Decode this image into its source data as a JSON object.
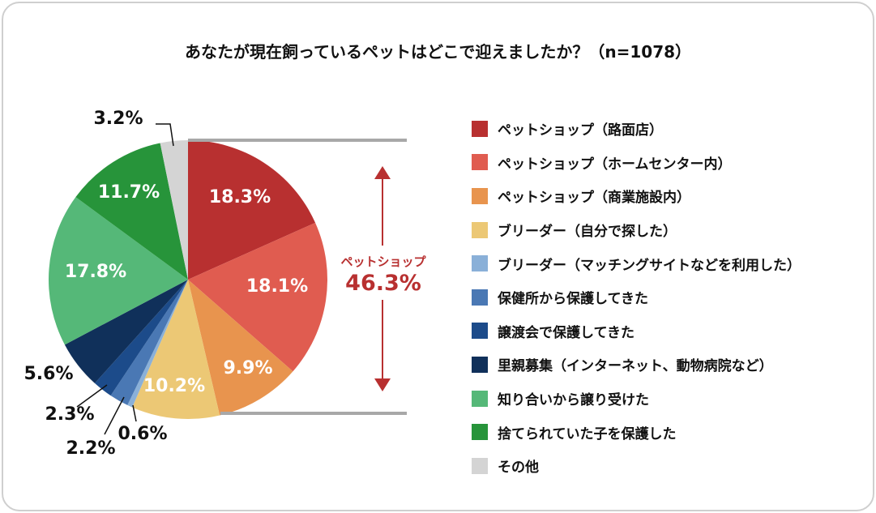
{
  "chart_data": {
    "type": "pie",
    "title": "あなたが現在飼っているペットはどこで迎えましたか？（n=1078）",
    "start_angle": "12 o'clock",
    "direction": "clockwise",
    "unit": "%",
    "slices": [
      {
        "label": "ペットショップ（路面店）",
        "value": 18.3,
        "value_label": "18.3%",
        "color": "#b83030"
      },
      {
        "label": "ペットショップ（ホームセンター内）",
        "value": 18.1,
        "value_label": "18.1%",
        "color": "#e05c50"
      },
      {
        "label": "ペットショップ（商業施設内）",
        "value": 9.9,
        "value_label": "9.9%",
        "color": "#e8944e"
      },
      {
        "label": "ブリーダー（自分で探した）",
        "value": 10.2,
        "value_label": "10.2%",
        "color": "#ecc875"
      },
      {
        "label": "ブリーダー（マッチングサイトなどを利用した）",
        "value": 0.6,
        "value_label": "0.6%",
        "color": "#8ab0d8"
      },
      {
        "label": "保健所から保護してきた",
        "value": 2.2,
        "value_label": "2.2%",
        "color": "#4a78b4"
      },
      {
        "label": "譲渡会で保護してきた",
        "value": 2.3,
        "value_label": "2.3%",
        "color": "#1c4b8a"
      },
      {
        "label": "里親募集（インターネット、動物病院など）",
        "value": 5.6,
        "value_label": "5.6%",
        "color": "#10305a"
      },
      {
        "label": "知り合いから譲り受けた",
        "value": 17.8,
        "value_label": "17.8%",
        "color": "#55b878"
      },
      {
        "label": "捨てられていた子を保護した",
        "value": 11.7,
        "value_label": "11.7%",
        "color": "#27943a"
      },
      {
        "label": "その他",
        "value": 3.2,
        "value_label": "3.2%",
        "color": "#d4d4d4"
      }
    ],
    "annotation": {
      "label": "ペットショップ",
      "value": "46.3%",
      "color": "#b83030"
    },
    "legend": "right"
  }
}
